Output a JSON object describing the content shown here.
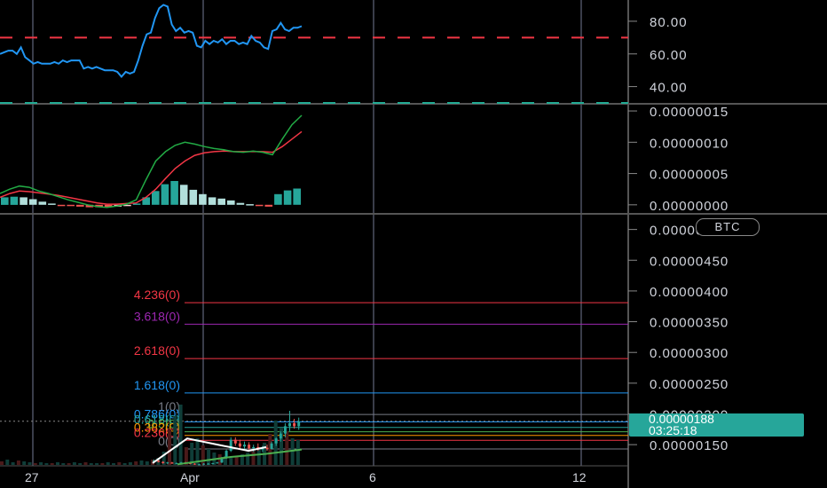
{
  "badge": "BTC",
  "price_tag": {
    "price": "0.00000188",
    "countdown": "03:25:18"
  },
  "colors": {
    "background": "#000000",
    "grid": "#3a3d4a",
    "rsi_line": "#2196f3",
    "rsi_upper": "#f23645",
    "rsi_lower": "#22ab94",
    "macd_line": "#22ab45",
    "signal_line": "#f23645",
    "hist_up": "#26a69a",
    "hist_up_light": "#b2dfdb",
    "hist_down": "#ef5350",
    "hist_down_light": "#ffcdd2",
    "price_tag": "#26a69a"
  },
  "x_axis": {
    "labels": [
      "27",
      "Apr",
      "6",
      "12"
    ]
  },
  "chart_data": [
    {
      "type": "line",
      "name": "RSI",
      "y_ticks": [
        "80.00",
        "60.00",
        "40.00"
      ],
      "ylim": [
        30,
        93
      ],
      "levels": [
        70,
        30
      ],
      "values": [
        60,
        61,
        62,
        62,
        60,
        64,
        58,
        56,
        54,
        55,
        54,
        54,
        54,
        55,
        54,
        56,
        55,
        56,
        56,
        56,
        51,
        52,
        51,
        52,
        51,
        50,
        50,
        50,
        49,
        46,
        49,
        48,
        49,
        56,
        65,
        72,
        73,
        82,
        88,
        90,
        89,
        78,
        74,
        76,
        73,
        74,
        73,
        65,
        64,
        68,
        66,
        68,
        67,
        69,
        66,
        68,
        68,
        66,
        67,
        66,
        71,
        68,
        67,
        64,
        63,
        74,
        75,
        79,
        75,
        74,
        76,
        76,
        77
      ]
    },
    {
      "type": "bar",
      "name": "MACD",
      "y_ticks": [
        "0.00000015",
        "0.00000010",
        "0.00000005",
        "0.00000000"
      ],
      "ylim": [
        -1.3e-08,
        1.6e-07
      ],
      "macd": [
        1.8e-08,
        2.5e-08,
        3e-08,
        2.8e-08,
        2.2e-08,
        1.8e-08,
        1.3e-08,
        8e-09,
        4e-09,
        0.0,
        -3e-09,
        -4e-09,
        -2e-09,
        1e-09,
        8e-09,
        4e-08,
        7e-08,
        8.5e-08,
        9.5e-08,
        1e-07,
        9.7e-08,
        9.3e-08,
        9e-08,
        8.8e-08,
        8.5e-08,
        8.4e-08,
        8.6e-08,
        8.4e-08,
        8e-08,
        1.05e-07,
        1.28e-07,
        1.43e-07
      ],
      "signal": [
        1.2e-08,
        1.8e-08,
        2.2e-08,
        2.1e-08,
        1.9e-08,
        1.7e-08,
        1.5e-08,
        1.2e-08,
        9e-09,
        6e-09,
        3e-09,
        1e-09,
        1e-09,
        2e-09,
        3e-09,
        1.2e-08,
        2.5e-08,
        4.2e-08,
        5.8e-08,
        7e-08,
        7.9e-08,
        8.3e-08,
        8.5e-08,
        8.6e-08,
        8.5e-08,
        8.5e-08,
        8.5e-08,
        8.5e-08,
        8.4e-08,
        9.3e-08,
        1.05e-07,
        1.17e-07
      ],
      "histogram": [
        1.2e-08,
        1.3e-08,
        1.2e-08,
        9e-09,
        5e-09,
        2e-09,
        -1e-09,
        -2e-09,
        -3e-09,
        -4e-09,
        -4e-09,
        -4e-09,
        -3e-09,
        -2e-09,
        2e-09,
        1.2e-08,
        2.2e-08,
        3.3e-08,
        3.8e-08,
        3.2e-08,
        2.4e-08,
        1.7e-08,
        1.2e-08,
        1e-08,
        7e-09,
        3e-09,
        1e-09,
        -2e-09,
        -3e-09,
        1.7e-08,
        2.3e-08,
        2.6e-08
      ]
    },
    {
      "type": "line",
      "name": "Price",
      "y_ticks": [
        "0.00000500",
        "0.00000450",
        "0.00000400",
        "0.00000350",
        "0.00000300",
        "0.00000250",
        "0.00000200",
        "0.00000150"
      ],
      "ylim": [
        1.17e-06,
        5.24e-06
      ],
      "fib_levels": [
        {
          "label": "4.236(0)",
          "value": 3.81e-06,
          "color": "#f23645"
        },
        {
          "label": "3.618(0)",
          "value": 3.46e-06,
          "color": "#9c27b0"
        },
        {
          "label": "2.618(0)",
          "value": 2.9e-06,
          "color": "#f23645"
        },
        {
          "label": "1.618(0)",
          "value": 2.34e-06,
          "color": "#2196f3"
        },
        {
          "label": "1(0)",
          "value": 1.99e-06,
          "color": "#787b86"
        },
        {
          "label": "0.786(0)",
          "value": 1.87e-06,
          "color": "#2196f3"
        },
        {
          "label": "0.618(0)",
          "value": 1.78e-06,
          "color": "#26a69a"
        },
        {
          "label": "0.5(0)",
          "value": 1.71e-06,
          "color": "#4caf50"
        },
        {
          "label": "0.382(0)",
          "value": 1.65e-06,
          "color": "#ff9800"
        },
        {
          "label": "0.236(0)",
          "value": 1.57e-06,
          "color": "#f23645"
        },
        {
          "label": "0(0)",
          "value": 1.43e-06,
          "color": "#787b86"
        }
      ],
      "last_price": 1.88e-06
    }
  ]
}
